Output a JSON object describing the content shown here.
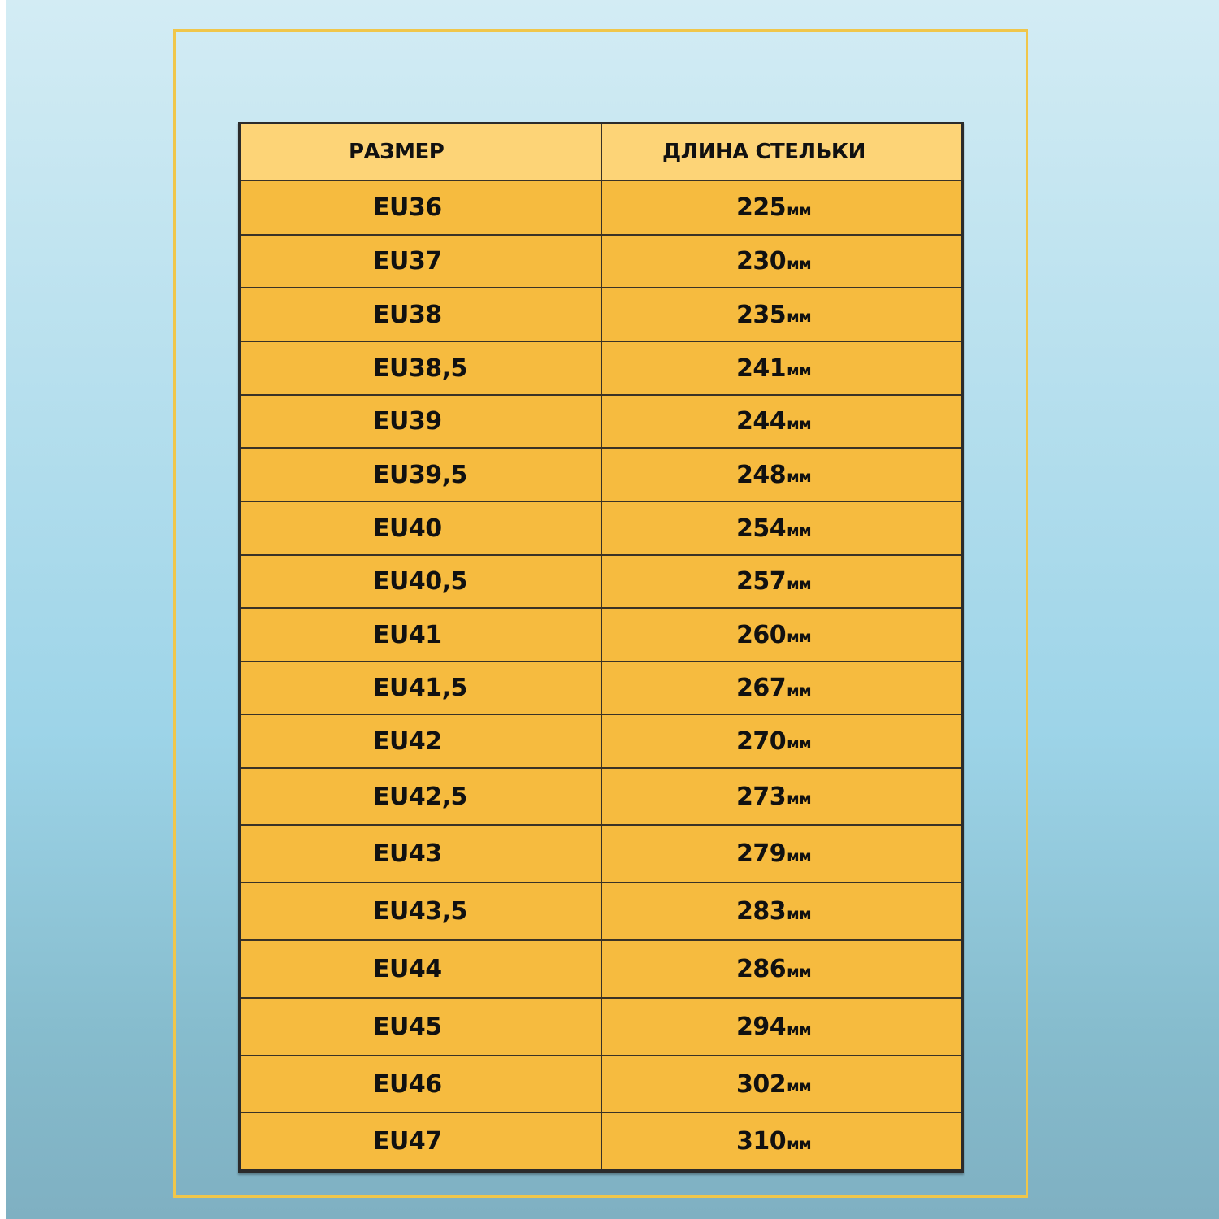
{
  "table": {
    "headers": [
      "РАЗМЕР",
      "ДЛИНА СТЕЛЬКИ"
    ],
    "unit": "мм",
    "rows": [
      {
        "size": "EU36",
        "length": "225"
      },
      {
        "size": "EU37",
        "length": "230"
      },
      {
        "size": "EU38",
        "length": "235"
      },
      {
        "size": "EU38,5",
        "length": "241"
      },
      {
        "size": "EU39",
        "length": "244"
      },
      {
        "size": "EU39,5",
        "length": "248"
      },
      {
        "size": "EU40",
        "length": "254"
      },
      {
        "size": "EU40,5",
        "length": "257"
      },
      {
        "size": "EU41",
        "length": "260"
      },
      {
        "size": "EU41,5",
        "length": "267"
      },
      {
        "size": "EU42",
        "length": "270"
      },
      {
        "size": "EU42,5",
        "length": "273"
      },
      {
        "size": "EU43",
        "length": "279"
      },
      {
        "size": "EU43,5",
        "length": "283"
      },
      {
        "size": "EU44",
        "length": "286"
      },
      {
        "size": "EU45",
        "length": "294"
      },
      {
        "size": "EU46",
        "length": "302"
      },
      {
        "size": "EU47",
        "length": "310"
      }
    ]
  },
  "colors": {
    "header": "#fdd477",
    "row": "#f6bb3f",
    "frame": "#f0c64a",
    "border": "#2b2b2b"
  }
}
